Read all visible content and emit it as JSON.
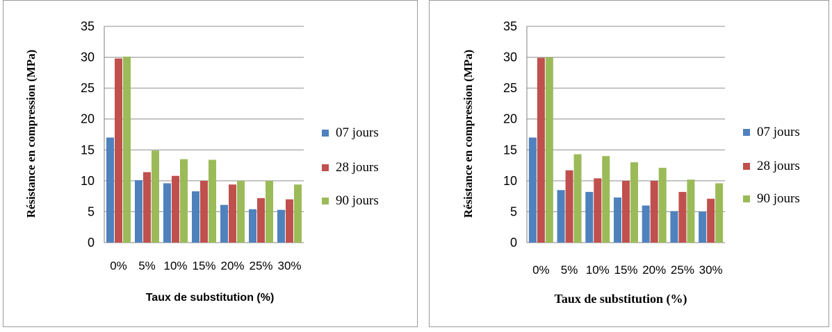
{
  "colors": {
    "s07": "#4f81bd",
    "s28": "#c0504d",
    "s90": "#9bbb59",
    "grid": "#8c8c8c",
    "axis": "#7f7f7f"
  },
  "chart_data": [
    {
      "type": "bar",
      "xlabel": "Taux de substitution  (%)",
      "ylabel": "Résistance en compression (MPa)",
      "categories": [
        "0%",
        "5%",
        "10%",
        "15%",
        "20%",
        "25%",
        "30%"
      ],
      "ylim": [
        0,
        35
      ],
      "yticks": [
        0,
        5,
        10,
        15,
        20,
        25,
        30,
        35
      ],
      "grid": true,
      "legend_position": "right",
      "series": [
        {
          "name": "07 jours",
          "color": "#4f81bd",
          "values": [
            17.0,
            10.1,
            9.6,
            8.3,
            6.1,
            5.4,
            5.3
          ]
        },
        {
          "name": "28 jours",
          "color": "#c0504d",
          "values": [
            29.8,
            11.4,
            10.8,
            10.0,
            9.4,
            7.2,
            7.0
          ]
        },
        {
          "name": "90 jours",
          "color": "#9bbb59",
          "values": [
            30.1,
            14.9,
            13.5,
            13.4,
            10.0,
            10.0,
            9.4
          ]
        }
      ]
    },
    {
      "type": "bar",
      "xlabel": "Taux de substitution  (%)",
      "ylabel": "Résistance en compression (MPa)",
      "categories": [
        "0%",
        "5%",
        "10%",
        "15%",
        "20%",
        "25%",
        "30%"
      ],
      "ylim": [
        0,
        35
      ],
      "yticks": [
        0,
        5,
        10,
        15,
        20,
        25,
        30,
        35
      ],
      "grid": true,
      "legend_position": "right",
      "series": [
        {
          "name": "07 jours",
          "color": "#4f81bd",
          "values": [
            17.0,
            8.5,
            8.2,
            7.3,
            6.0,
            5.1,
            5.0
          ]
        },
        {
          "name": "28 jours",
          "color": "#c0504d",
          "values": [
            29.9,
            11.7,
            10.4,
            10.0,
            10.0,
            8.2,
            7.1
          ]
        },
        {
          "name": "90 jours",
          "color": "#9bbb59",
          "values": [
            30.0,
            14.3,
            14.0,
            13.0,
            12.1,
            10.2,
            9.6
          ]
        }
      ]
    }
  ]
}
